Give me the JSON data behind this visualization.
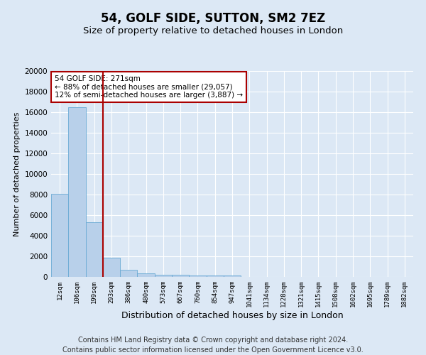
{
  "title": "54, GOLF SIDE, SUTTON, SM2 7EZ",
  "subtitle": "Size of property relative to detached houses in London",
  "xlabel": "Distribution of detached houses by size in London",
  "ylabel": "Number of detached properties",
  "categories": [
    "12sqm",
    "106sqm",
    "199sqm",
    "293sqm",
    "386sqm",
    "480sqm",
    "573sqm",
    "667sqm",
    "760sqm",
    "854sqm",
    "947sqm",
    "1041sqm",
    "1134sqm",
    "1228sqm",
    "1321sqm",
    "1415sqm",
    "1508sqm",
    "1602sqm",
    "1695sqm",
    "1789sqm",
    "1882sqm"
  ],
  "values": [
    8100,
    16500,
    5300,
    1850,
    700,
    320,
    220,
    190,
    170,
    150,
    130,
    0,
    0,
    0,
    0,
    0,
    0,
    0,
    0,
    0,
    0
  ],
  "bar_color": "#b8d0ea",
  "bar_edge_color": "#6aaad4",
  "vline_x": 2.5,
  "vline_color": "#aa0000",
  "annotation_text": "54 GOLF SIDE: 271sqm\n← 88% of detached houses are smaller (29,057)\n12% of semi-detached houses are larger (3,887) →",
  "annotation_box_color": "#ffffff",
  "annotation_box_edge": "#aa0000",
  "ylim": [
    0,
    20000
  ],
  "yticks": [
    0,
    2000,
    4000,
    6000,
    8000,
    10000,
    12000,
    14000,
    16000,
    18000,
    20000
  ],
  "background_color": "#dce8f5",
  "plot_bg_color": "#dce8f5",
  "grid_color": "#ffffff",
  "footer": "Contains HM Land Registry data © Crown copyright and database right 2024.\nContains public sector information licensed under the Open Government Licence v3.0.",
  "title_fontsize": 12,
  "subtitle_fontsize": 9.5,
  "xlabel_fontsize": 9,
  "ylabel_fontsize": 8,
  "footer_fontsize": 7
}
